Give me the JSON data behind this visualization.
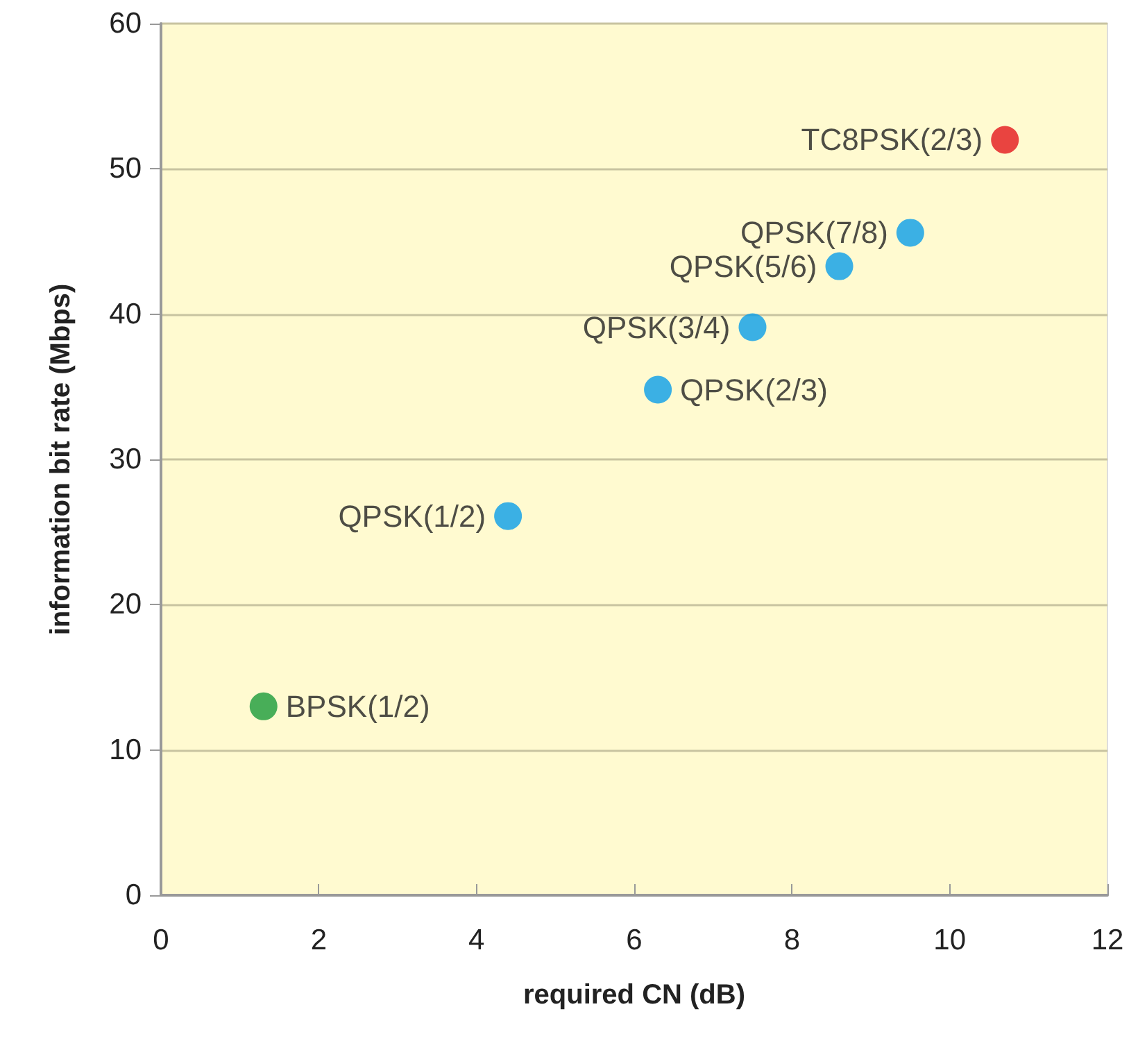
{
  "chart_data": {
    "type": "scatter",
    "xlabel": "required CN (dB)",
    "ylabel": "information bit rate (Mbps)",
    "xlim": [
      0,
      12
    ],
    "xticks": [
      0,
      2,
      4,
      6,
      8,
      10,
      12
    ],
    "ylim": [
      0,
      60
    ],
    "yticks": [
      0,
      10,
      20,
      30,
      40,
      50,
      60
    ],
    "grid": "y",
    "legend": false,
    "marker": "circle",
    "series": [
      {
        "name": "BPSK(1/2)",
        "color": "#1a9b3a",
        "x": [
          1.3
        ],
        "values": [
          13
        ]
      },
      {
        "name": "QPSK(1/2)",
        "color": "#0a9ee8",
        "x": [
          4.4
        ],
        "values": [
          26.1
        ]
      },
      {
        "name": "QPSK(2/3)",
        "color": "#0a9ee8",
        "x": [
          6.3
        ],
        "values": [
          34.8
        ]
      },
      {
        "name": "QPSK(3/4)",
        "color": "#0a9ee8",
        "x": [
          7.5
        ],
        "values": [
          39.1
        ]
      },
      {
        "name": "QPSK(5/6)",
        "color": "#0a9ee8",
        "x": [
          8.6
        ],
        "values": [
          43.3
        ]
      },
      {
        "name": "QPSK(7/8)",
        "color": "#0a9ee8",
        "x": [
          9.5
        ],
        "values": [
          45.6
        ]
      },
      {
        "name": "TC8PSK(2/3)",
        "color": "#e3161b",
        "x": [
          10.7
        ],
        "values": [
          52
        ]
      }
    ]
  }
}
